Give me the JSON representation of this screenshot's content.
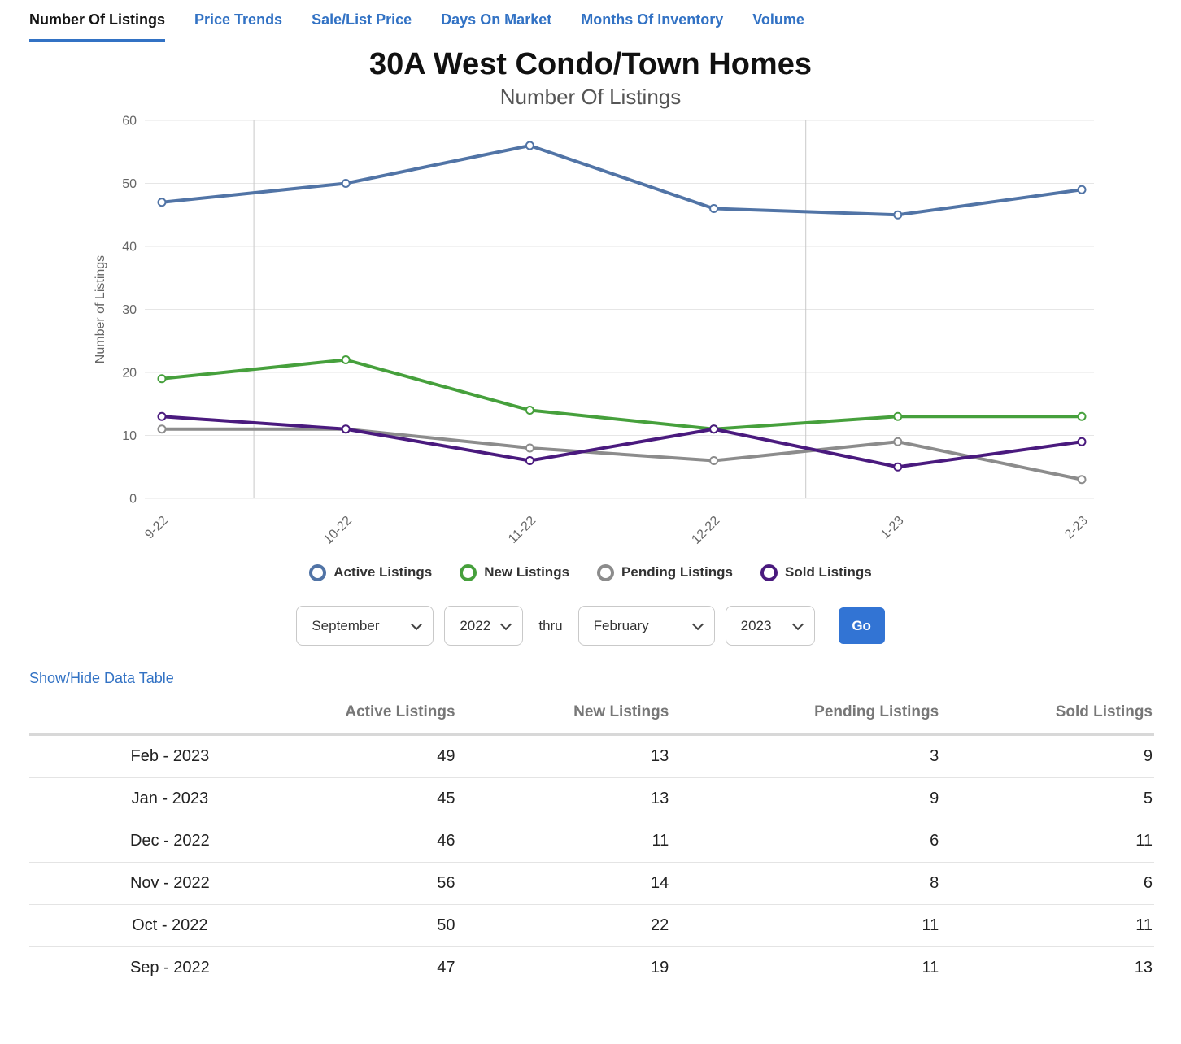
{
  "nav": {
    "tabs": [
      {
        "label": "Number Of Listings",
        "active": true
      },
      {
        "label": "Price Trends",
        "active": false
      },
      {
        "label": "Sale/List Price",
        "active": false
      },
      {
        "label": "Days On Market",
        "active": false
      },
      {
        "label": "Months Of Inventory",
        "active": false
      },
      {
        "label": "Volume",
        "active": false
      }
    ]
  },
  "header": {
    "title": "30A West Condo/Town Homes",
    "subtitle": "Number Of Listings"
  },
  "chart_data": {
    "type": "line",
    "title": "30A West Condo/Town Homes",
    "subtitle": "Number Of Listings",
    "x": [
      "9-22",
      "10-22",
      "11-22",
      "12-22",
      "1-23",
      "2-23"
    ],
    "series": [
      {
        "name": "Active Listings",
        "color": "#5174a6",
        "values": [
          47,
          50,
          56,
          46,
          45,
          49
        ]
      },
      {
        "name": "New Listings",
        "color": "#46a03c",
        "values": [
          19,
          22,
          14,
          11,
          13,
          13
        ]
      },
      {
        "name": "Pending Listings",
        "color": "#8c8c8c",
        "values": [
          11,
          11,
          8,
          6,
          9,
          3
        ]
      },
      {
        "name": "Sold Listings",
        "color": "#4a1a7e",
        "values": [
          13,
          11,
          6,
          11,
          5,
          9
        ]
      }
    ],
    "xlabel": "",
    "ylabel": "Number of Listings",
    "ylim": [
      0,
      60
    ],
    "yticks": [
      0,
      10,
      20,
      30,
      40,
      50,
      60
    ],
    "grid": true,
    "vertical_separators_between": [
      [
        "9-22",
        "10-22"
      ],
      [
        "12-22",
        "1-23"
      ]
    ],
    "legend_position": "bottom",
    "marker_style": "open-circle"
  },
  "controls": {
    "start_month": "September",
    "start_year": "2022",
    "thru_label": "thru",
    "end_month": "February",
    "end_year": "2023",
    "go_label": "Go"
  },
  "table": {
    "toggle_label": "Show/Hide Data Table",
    "columns": [
      "Active Listings",
      "New Listings",
      "Pending Listings",
      "Sold Listings"
    ],
    "rows": [
      {
        "label": "Feb - 2023",
        "values": [
          49,
          13,
          3,
          9
        ]
      },
      {
        "label": "Jan - 2023",
        "values": [
          45,
          13,
          9,
          5
        ]
      },
      {
        "label": "Dec - 2022",
        "values": [
          46,
          11,
          6,
          11
        ]
      },
      {
        "label": "Nov - 2022",
        "values": [
          56,
          14,
          8,
          6
        ]
      },
      {
        "label": "Oct - 2022",
        "values": [
          50,
          22,
          11,
          11
        ]
      },
      {
        "label": "Sep - 2022",
        "values": [
          47,
          19,
          11,
          13
        ]
      }
    ]
  }
}
